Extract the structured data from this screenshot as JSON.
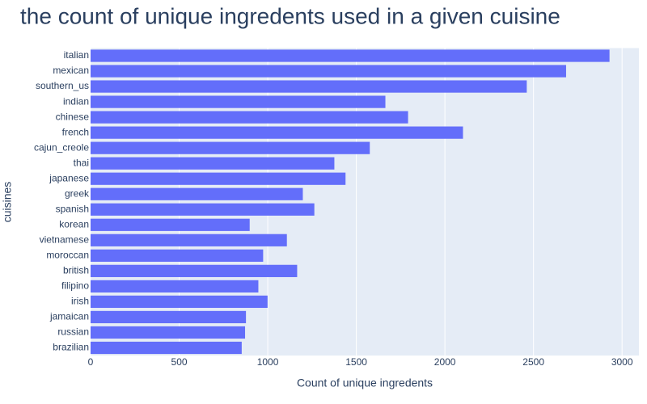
{
  "chart_data": {
    "type": "bar",
    "orientation": "horizontal",
    "title": "the count of unique ingredents used in a given cuisine",
    "x_label": "Count of unique ingredents",
    "y_label": "cuisines",
    "categories": [
      "italian",
      "mexican",
      "southern_us",
      "indian",
      "chinese",
      "french",
      "cajun_creole",
      "thai",
      "japanese",
      "greek",
      "spanish",
      "korean",
      "vietnamese",
      "moroccan",
      "british",
      "filipino",
      "irish",
      "jamaican",
      "russian",
      "brazilian"
    ],
    "values": [
      2929,
      2684,
      2462,
      1664,
      1792,
      2102,
      1576,
      1376,
      1439,
      1198,
      1263,
      898,
      1108,
      974,
      1166,
      947,
      999,
      877,
      872,
      853
    ],
    "color": "#636efa",
    "xlim": [
      0,
      3095
    ],
    "xticks": [
      0,
      500,
      1000,
      1500,
      2000,
      2500,
      3000
    ],
    "grid": true
  }
}
